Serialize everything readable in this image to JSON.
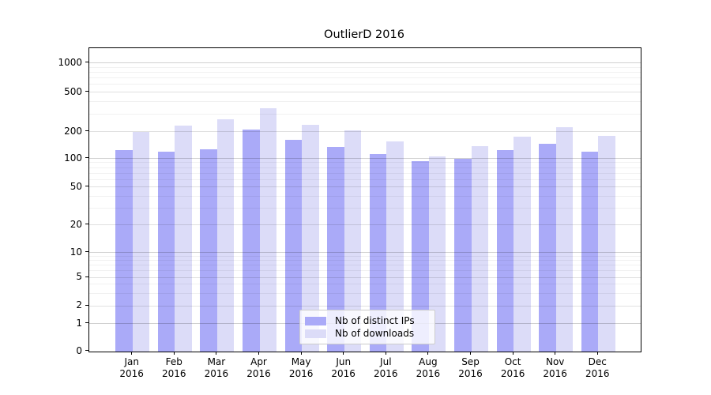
{
  "chart_data": {
    "type": "bar",
    "title": "OutlierD 2016",
    "categories": [
      "Jan 2016",
      "Feb 2016",
      "Mar 2016",
      "Apr 2016",
      "May 2016",
      "Jun 2016",
      "Jul 2016",
      "Aug 2016",
      "Sep 2016",
      "Oct 2016",
      "Nov 2016",
      "Dec 2016"
    ],
    "series": [
      {
        "name": "Nb of distinct IPs",
        "color": "#aaaaf8",
        "values": [
          125,
          118,
          127,
          210,
          160,
          135,
          113,
          93,
          99,
          124,
          145,
          120
        ]
      },
      {
        "name": "Nb of downloads",
        "color": "#dcdcf8",
        "values": [
          200,
          230,
          265,
          345,
          232,
          207,
          155,
          106,
          137,
          176,
          222,
          180
        ]
      }
    ],
    "xlabel": "",
    "ylabel": "",
    "yscale": "symlog",
    "ylim": [
      0,
      1500
    ],
    "y_ticks": [
      0,
      1,
      2,
      5,
      10,
      20,
      50,
      100,
      200,
      500,
      1000
    ],
    "grid": true,
    "legend_position": "lower center"
  }
}
